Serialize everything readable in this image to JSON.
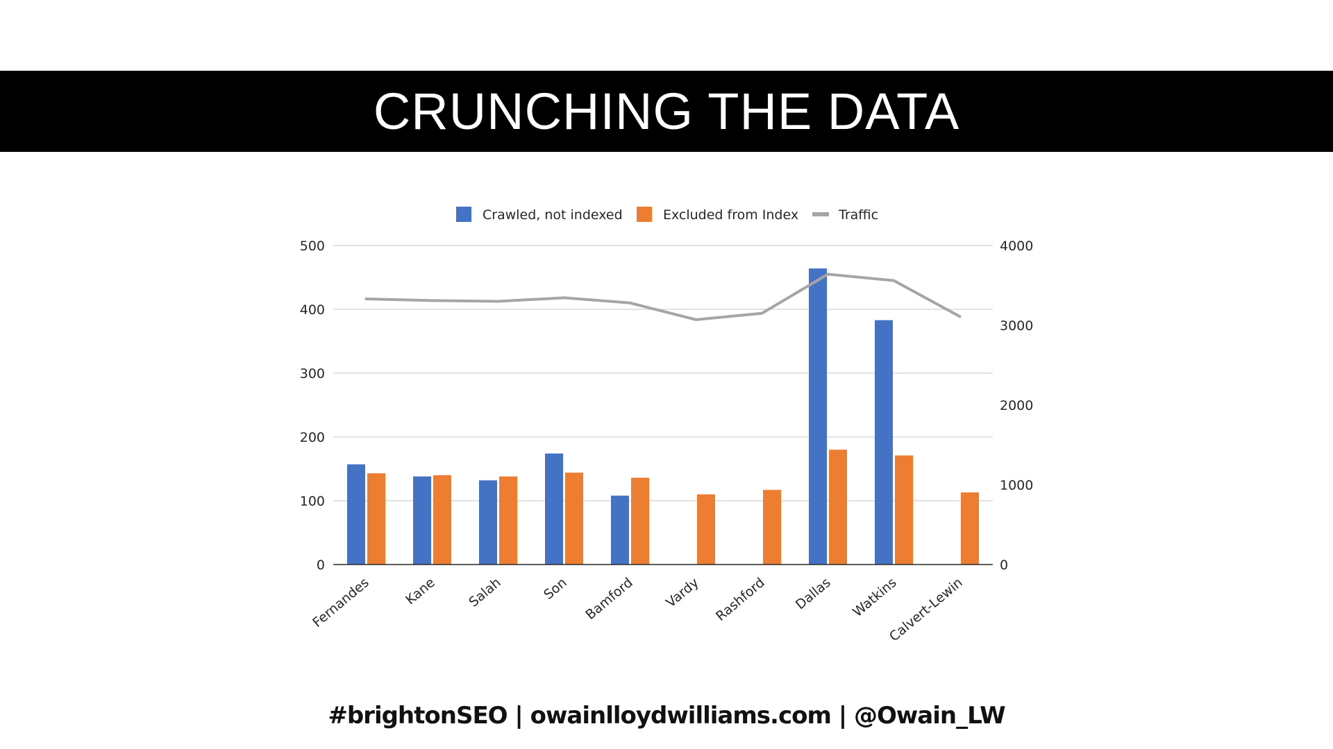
{
  "slide": {
    "title": "CRUNCHING THE DATA",
    "footer": "#brightonSEO | owainlloydwilliams.com | @Owain_LW"
  },
  "colors": {
    "crawled": "#4472C4",
    "excluded": "#ED7D31",
    "traffic": "#A5A5A5",
    "gridline": "#D9D9D9"
  },
  "chart_data": {
    "type": "bar",
    "categories": [
      "Fernandes",
      "Kane",
      "Salah",
      "Son",
      "Bamford",
      "Vardy",
      "Rashford",
      "Dallas",
      "Watkins",
      "Calvert-Lewin"
    ],
    "series": [
      {
        "name": "Crawled, not indexed",
        "type": "bar",
        "axis": "left",
        "values": [
          157,
          138,
          132,
          174,
          108,
          null,
          null,
          464,
          383,
          null
        ]
      },
      {
        "name": "Excluded from Index",
        "type": "bar",
        "axis": "left",
        "values": [
          143,
          140,
          138,
          144,
          136,
          110,
          117,
          180,
          171,
          113
        ]
      },
      {
        "name": "Traffic",
        "type": "line",
        "axis": "right",
        "values": [
          3330,
          3310,
          3300,
          3345,
          3280,
          3070,
          3150,
          3640,
          3560,
          3110
        ]
      }
    ],
    "ylim": [
      0,
      500
    ],
    "yticks": [
      0,
      100,
      200,
      300,
      400,
      500
    ],
    "y2lim": [
      0,
      4000
    ],
    "y2ticks": [
      0,
      1000,
      2000,
      3000,
      4000
    ],
    "grid": true,
    "legend": "top"
  }
}
